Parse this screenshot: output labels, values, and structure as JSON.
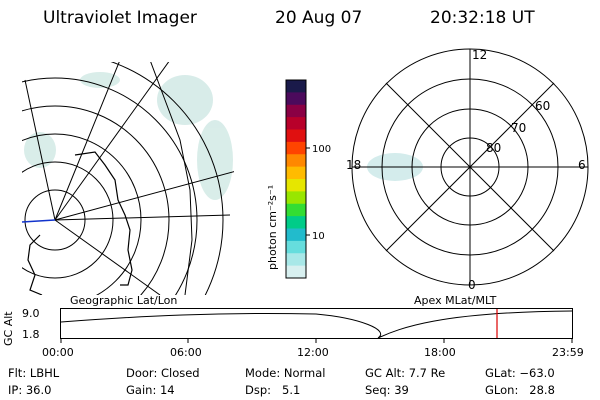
{
  "header": {
    "title": "Ultraviolet Imager",
    "date": "20 Aug 07",
    "time": "20:32:18 UT"
  },
  "colorbar": {
    "unit_label": "photon cm⁻²s⁻¹",
    "ticks": [
      "100",
      "10"
    ],
    "colors": [
      "#1a1a4a",
      "#4b0a5c",
      "#8a0044",
      "#b8002a",
      "#e01010",
      "#ff4400",
      "#ff8800",
      "#ffbb00",
      "#e6e600",
      "#99e600",
      "#33dd33",
      "#00cc88",
      "#22bbcc",
      "#66dddd",
      "#a8e8e8",
      "#d8f0f0"
    ]
  },
  "polar_plot": {
    "labels": {
      "top": "12",
      "left": "18",
      "right": "6",
      "bottom": "0"
    },
    "lat_labels": [
      "60",
      "70",
      "80"
    ]
  },
  "map_captions": {
    "left": "Geographic Lat/Lon",
    "right": "Apex MLat/MLT"
  },
  "altitude_strip": {
    "ylabel": "GC Alt",
    "ytick_top": "9.0",
    "ytick_bottom": "1.8",
    "time_ticks": [
      "00:00",
      "06:00",
      "12:00",
      "18:00",
      "23:59"
    ],
    "marker_color": "#dd0000"
  },
  "info": {
    "filter": {
      "label": "Flt:",
      "value": "LBHL"
    },
    "ip": {
      "label": "IP:",
      "value": "36.0"
    },
    "door": {
      "label": "Door:",
      "value": "Closed"
    },
    "gain": {
      "label": "Gain:",
      "value": "14"
    },
    "mode": {
      "label": "Mode:",
      "value": "Normal"
    },
    "dsp": {
      "label": "Dsp:",
      "value": "5.1"
    },
    "gc_alt": {
      "label": "GC Alt:",
      "value": "7.7 Re"
    },
    "seq": {
      "label": "Seq:",
      "value": "39"
    },
    "glat": {
      "label": "GLat:",
      "value": "−63.0"
    },
    "glon": {
      "label": "GLon:",
      "value": "28.8"
    }
  }
}
